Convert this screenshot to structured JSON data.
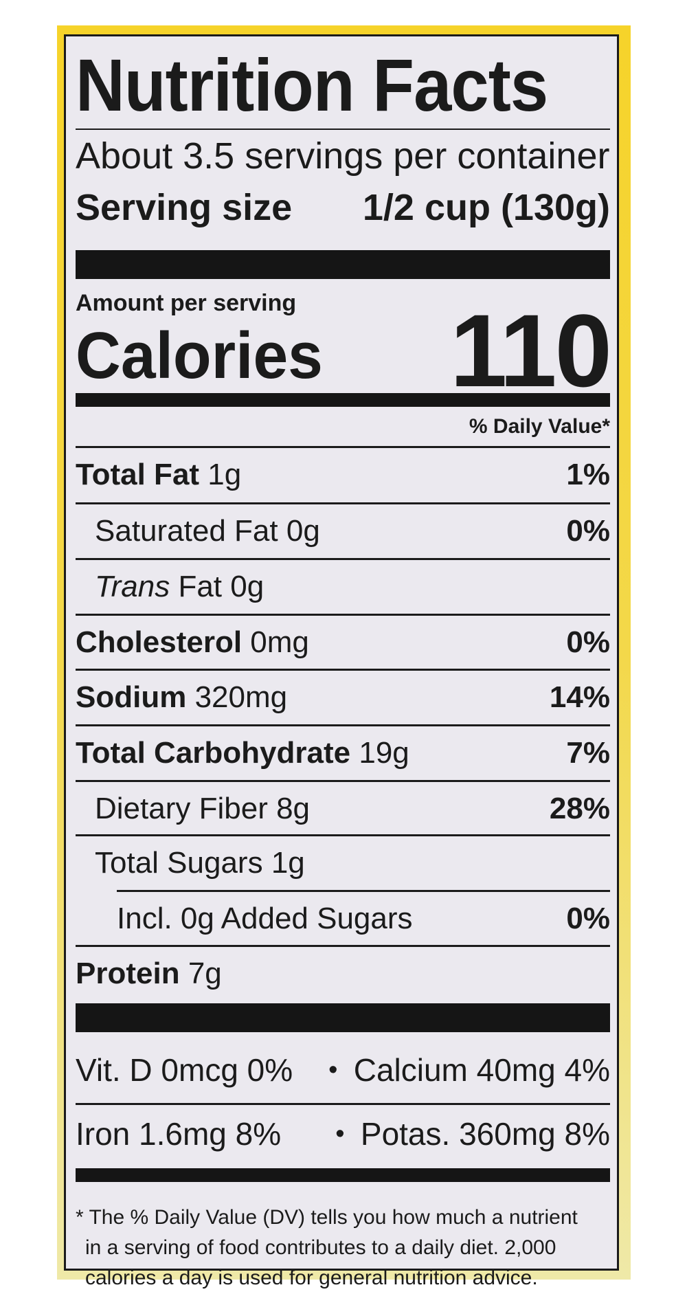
{
  "label": {
    "title": "Nutrition Facts",
    "servings_per_container": "About 3.5 servings per container",
    "serving_size_label": "Serving size",
    "serving_size_value": "1/2 cup (130g)",
    "amount_per_serving": "Amount per serving",
    "calories_label": "Calories",
    "calories_value": "110",
    "daily_value_header": "% Daily Value*"
  },
  "nutrients": [
    {
      "name": "Total Fat",
      "amount": "1g",
      "dv": "1%"
    },
    {
      "name": "Saturated Fat",
      "amount": "0g",
      "dv": "0%"
    },
    {
      "name": "Trans",
      "name_suffix": "Fat",
      "amount": "0g",
      "dv": ""
    },
    {
      "name": "Cholesterol",
      "amount": "0mg",
      "dv": "0%"
    },
    {
      "name": "Sodium",
      "amount": "320mg",
      "dv": "14%"
    },
    {
      "name": "Total Carbohydrate",
      "amount": "19g",
      "dv": "7%"
    },
    {
      "name": "Dietary Fiber",
      "amount": "8g",
      "dv": "28%"
    },
    {
      "name": "Total Sugars",
      "amount": "1g",
      "dv": ""
    },
    {
      "name": "Incl. 0g Added Sugars",
      "amount": "",
      "dv": "0%"
    },
    {
      "name": "Protein",
      "amount": "7g",
      "dv": ""
    }
  ],
  "vitamins": [
    {
      "left": "Vit. D 0mcg 0%",
      "bullet": "•",
      "right": "Calcium 40mg 4%"
    },
    {
      "left": "Iron 1.6mg 8%",
      "bullet": "•",
      "right": "Potas. 360mg 8%"
    }
  ],
  "footnote": {
    "line1": "* The % Daily Value (DV) tells you how much a nutrient",
    "line2": "in a serving of food contributes to a daily diet. 2,000",
    "line3": "calories a day is used for general nutrition advice."
  },
  "colors": {
    "frame": "#f6d32a",
    "panel": "#ebe9ef",
    "ink": "#1b1b1b"
  }
}
